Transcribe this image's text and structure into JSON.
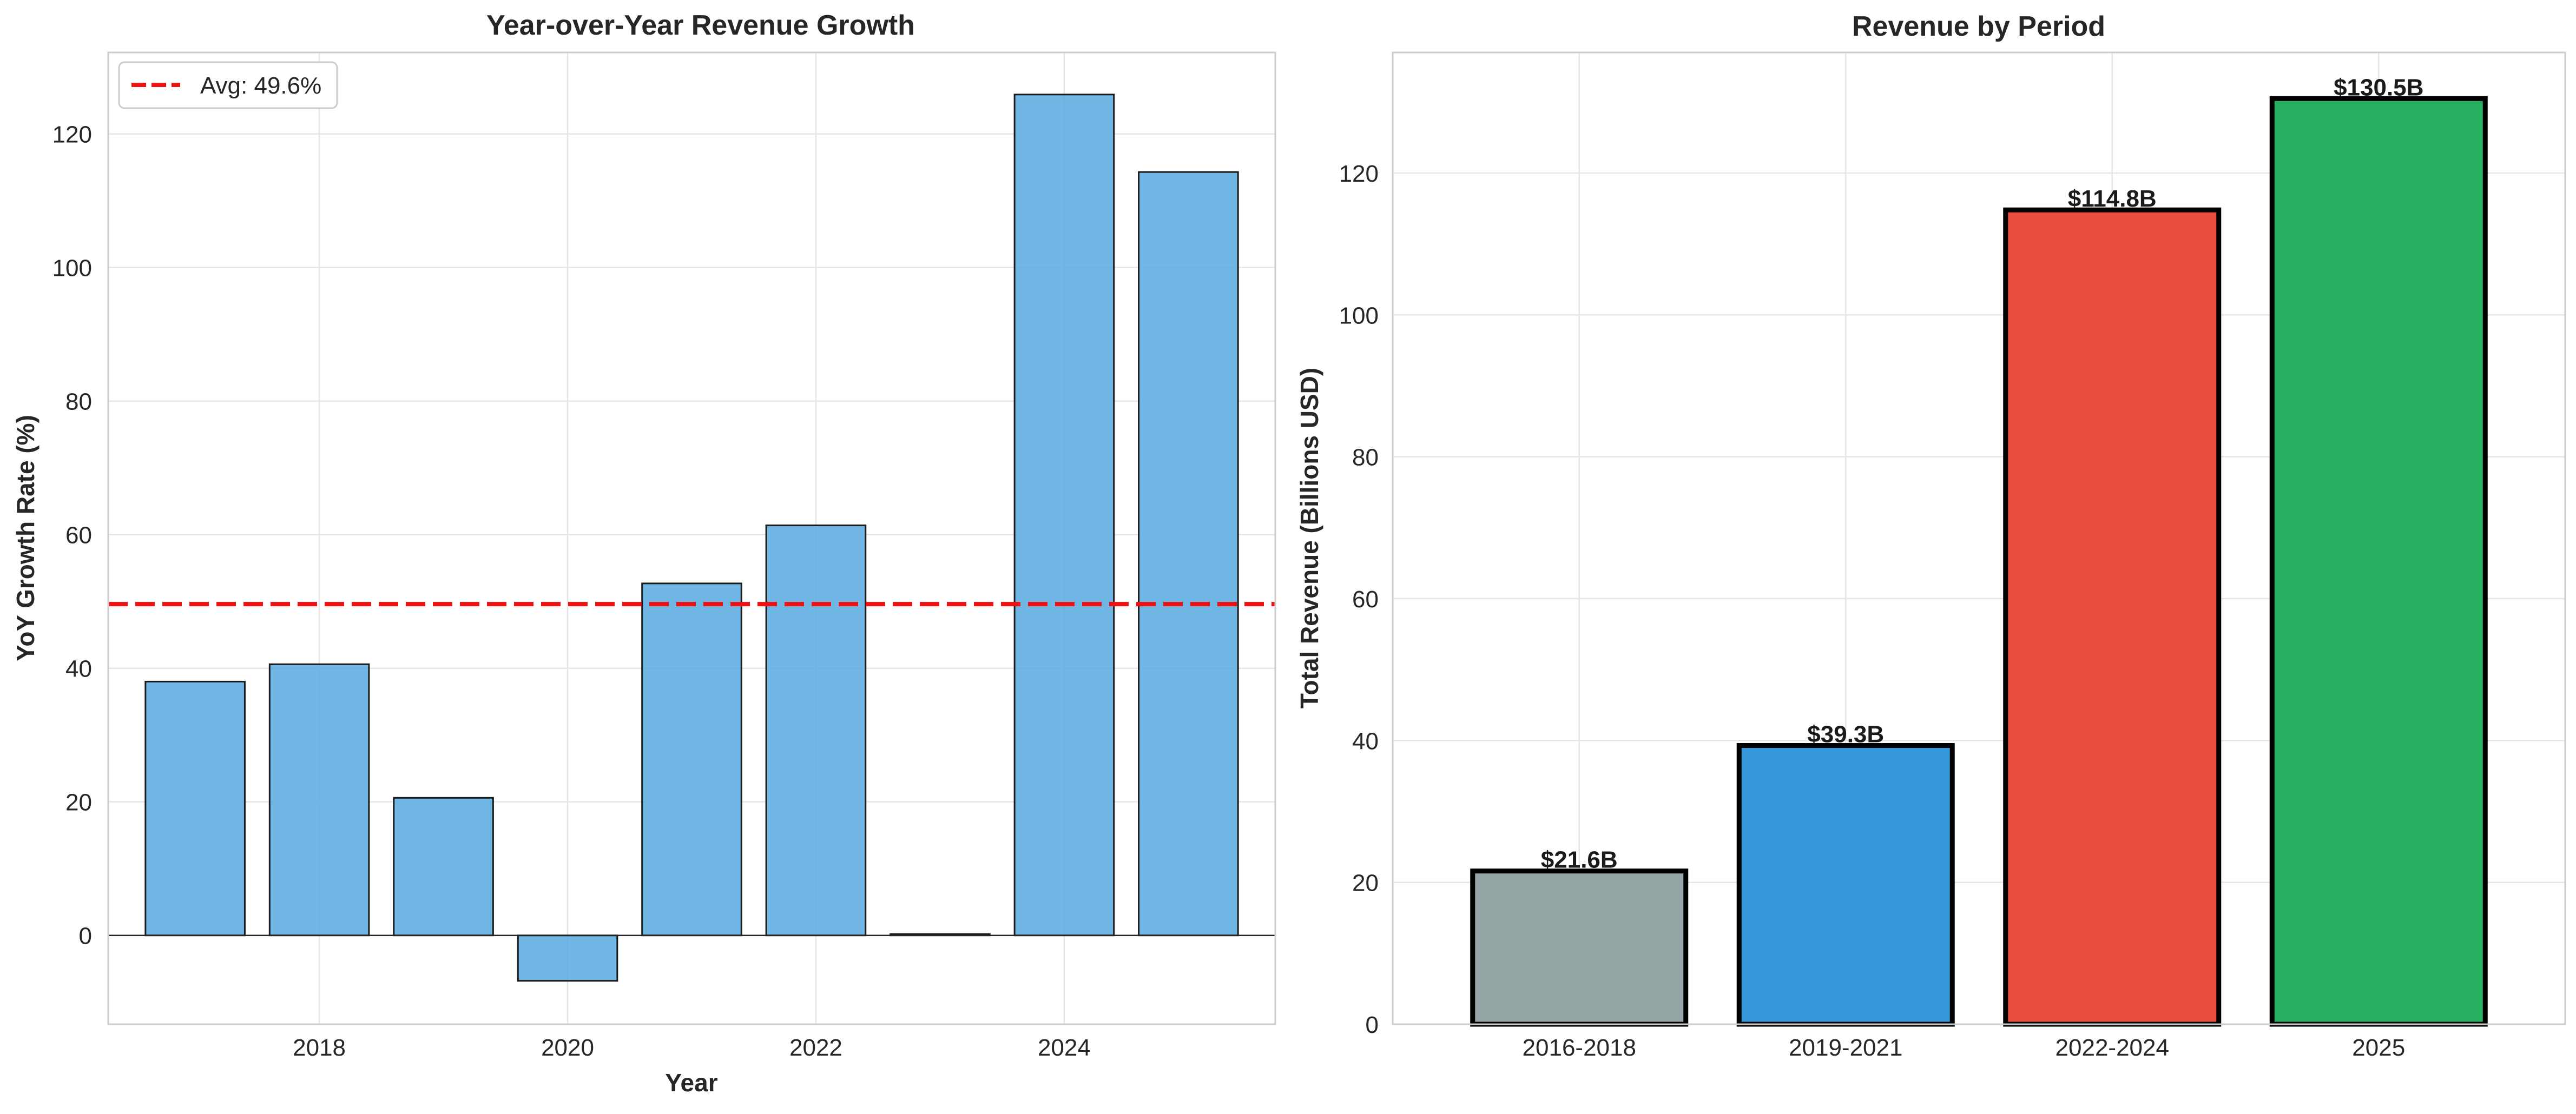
{
  "colors": {
    "growth_bar": "#5dade2",
    "avg_line": "#ee1111",
    "gray": "#95a5a6",
    "blue": "#3498db",
    "red": "#e74c3c",
    "green": "#27ae60",
    "grid": "#e6e6e6",
    "frame": "#cccccc"
  },
  "chart_data": [
    {
      "type": "bar",
      "title": "Year-over-Year Revenue Growth",
      "xlabel": "Year",
      "ylabel": "YoY Growth Rate (%)",
      "x": [
        2017,
        2018,
        2019,
        2020,
        2021,
        2022,
        2023,
        2024,
        2025
      ],
      "values": [
        38.0,
        40.6,
        20.6,
        -6.8,
        52.7,
        61.4,
        0.2,
        125.9,
        114.3
      ],
      "xticks": [
        "2018",
        "2020",
        "2022",
        "2024"
      ],
      "yticks": [
        "0",
        "20",
        "40",
        "60",
        "80",
        "100",
        "120"
      ],
      "xlim": [
        2016.3,
        2025.7
      ],
      "ylim": [
        -13.3,
        132.2
      ],
      "grid": true,
      "legend": {
        "position": "top-left",
        "entries": [
          "Avg: 49.6%"
        ]
      },
      "reference_line": {
        "label": "Avg: 49.6%",
        "value": 49.6,
        "style": "dashed"
      }
    },
    {
      "type": "bar",
      "title": "Revenue by Period",
      "xlabel": "",
      "ylabel": "Total Revenue (Billions USD)",
      "categories": [
        "2016-2018",
        "2019-2021",
        "2022-2024",
        "2025"
      ],
      "values": [
        21.6,
        39.3,
        114.8,
        130.5
      ],
      "data_labels": [
        "$21.6B",
        "$39.3B",
        "$114.8B",
        "$130.5B"
      ],
      "yticks": [
        "0",
        "20",
        "40",
        "60",
        "80",
        "100",
        "120"
      ],
      "ylim": [
        0,
        137
      ],
      "grid": true
    }
  ]
}
